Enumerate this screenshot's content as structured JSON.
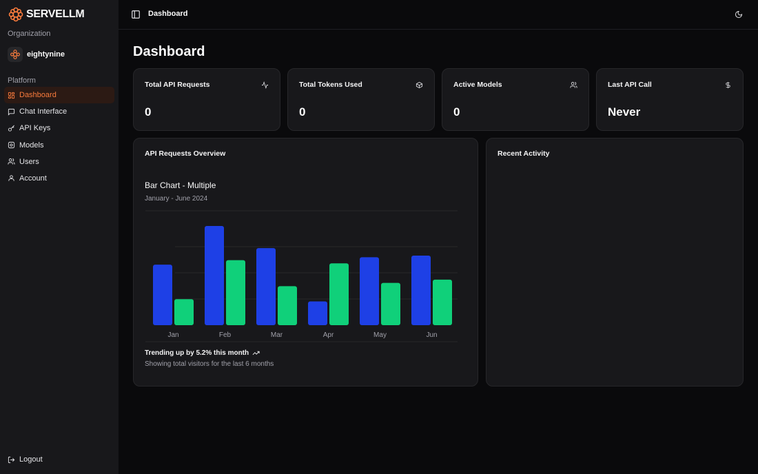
{
  "app": {
    "name": "SERVELLM"
  },
  "sidebar": {
    "org_label": "Organization",
    "org_name": "eightynine",
    "platform_label": "Platform",
    "items": [
      {
        "label": "Dashboard",
        "icon": "dashboard-icon",
        "active": true
      },
      {
        "label": "Chat Interface",
        "icon": "chat-icon",
        "active": false
      },
      {
        "label": "API Keys",
        "icon": "key-icon",
        "active": false
      },
      {
        "label": "Models",
        "icon": "cube-settings-icon",
        "active": false
      },
      {
        "label": "Users",
        "icon": "users-icon",
        "active": false
      },
      {
        "label": "Account",
        "icon": "user-icon",
        "active": false
      }
    ],
    "logout_label": "Logout"
  },
  "header": {
    "breadcrumb": "Dashboard"
  },
  "page": {
    "title": "Dashboard"
  },
  "stats": [
    {
      "title": "Total API Requests",
      "value": "0",
      "icon": "activity-icon"
    },
    {
      "title": "Total Tokens Used",
      "value": "0",
      "icon": "box-icon"
    },
    {
      "title": "Active Models",
      "value": "0",
      "icon": "users-icon"
    },
    {
      "title": "Last API Call",
      "value": "Never",
      "icon": "dollar-icon"
    }
  ],
  "overview": {
    "title": "API Requests Overview",
    "trend_text": "Trending up by 5.2% this month",
    "trend_sub": "Showing total visitors for the last 6 months"
  },
  "activity": {
    "title": "Recent Activity"
  },
  "colors": {
    "accent": "#f97b3c",
    "series_a": "#1e40e6",
    "series_b": "#10d07a"
  },
  "chart_data": {
    "type": "bar",
    "title": "Bar Chart - Multiple",
    "subtitle": "January - June 2024",
    "categories": [
      "Jan",
      "Feb",
      "Mar",
      "Apr",
      "May",
      "Jun"
    ],
    "series": [
      {
        "values": [
          186,
          305,
          237,
          73,
          209,
          214
        ]
      },
      {
        "values": [
          80,
          200,
          120,
          190,
          130,
          140
        ]
      }
    ],
    "ylim": [
      0,
      305
    ],
    "grid": true,
    "legend": "none"
  }
}
